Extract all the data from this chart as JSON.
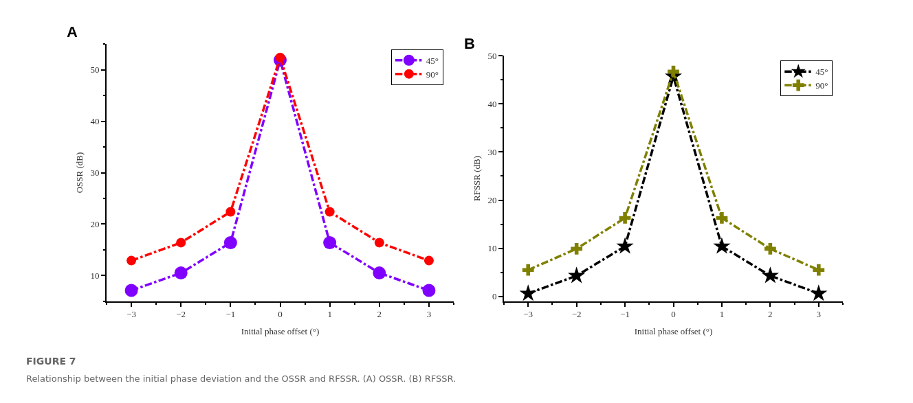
{
  "chart_data": [
    {
      "type": "line",
      "title": "A",
      "xlabel": "Initial phase offset (°)",
      "ylabel": "OSSR (dB)",
      "x": [
        -3,
        -2,
        -1,
        0,
        1,
        2,
        3
      ],
      "series": [
        {
          "name": "45°",
          "color": "#8000ff",
          "marker": "circle",
          "values": [
            7.1,
            10.5,
            16.4,
            51.9,
            16.4,
            10.5,
            7.1
          ]
        },
        {
          "name": "90°",
          "color": "#ff0000",
          "marker": "circle",
          "values": [
            12.9,
            16.4,
            22.4,
            52.4,
            22.4,
            16.4,
            12.9
          ]
        }
      ],
      "xlim": [
        -3.5,
        3.5
      ],
      "xticks": [
        -3,
        -2,
        -1,
        0,
        1,
        2,
        3
      ],
      "ylim": [
        5,
        55
      ],
      "yticks": [
        10,
        20,
        30,
        40,
        50
      ],
      "legend": "top right",
      "line_style": "dashed",
      "annotations": [
        "FIGURE 7",
        "Relationship between the initial phase deviation and the OSSR and RFSSR. (A) OSSR. (B) RFSSR."
      ]
    },
    {
      "type": "line",
      "title": "B",
      "xlabel": "Initial phase offset (°)",
      "ylabel": "RFSSR (dB)",
      "x": [
        -3,
        -2,
        -1,
        0,
        1,
        2,
        3
      ],
      "series": [
        {
          "name": "45°",
          "color": "#000000",
          "marker": "star",
          "values": [
            0.6,
            4.3,
            10.4,
            45.7,
            10.4,
            4.3,
            0.6
          ]
        },
        {
          "name": "90°",
          "color": "#808000",
          "marker": "cross",
          "values": [
            5.5,
            9.9,
            16.3,
            46.7,
            16.3,
            9.9,
            5.5
          ]
        }
      ],
      "xlim": [
        -3.5,
        3.5
      ],
      "xticks": [
        -3,
        -2,
        -1,
        0,
        1,
        2,
        3
      ],
      "ylim": [
        -1,
        50
      ],
      "yticks": [
        0,
        10,
        20,
        30,
        40,
        50
      ],
      "legend": "top right",
      "line_style": "dashed"
    }
  ]
}
